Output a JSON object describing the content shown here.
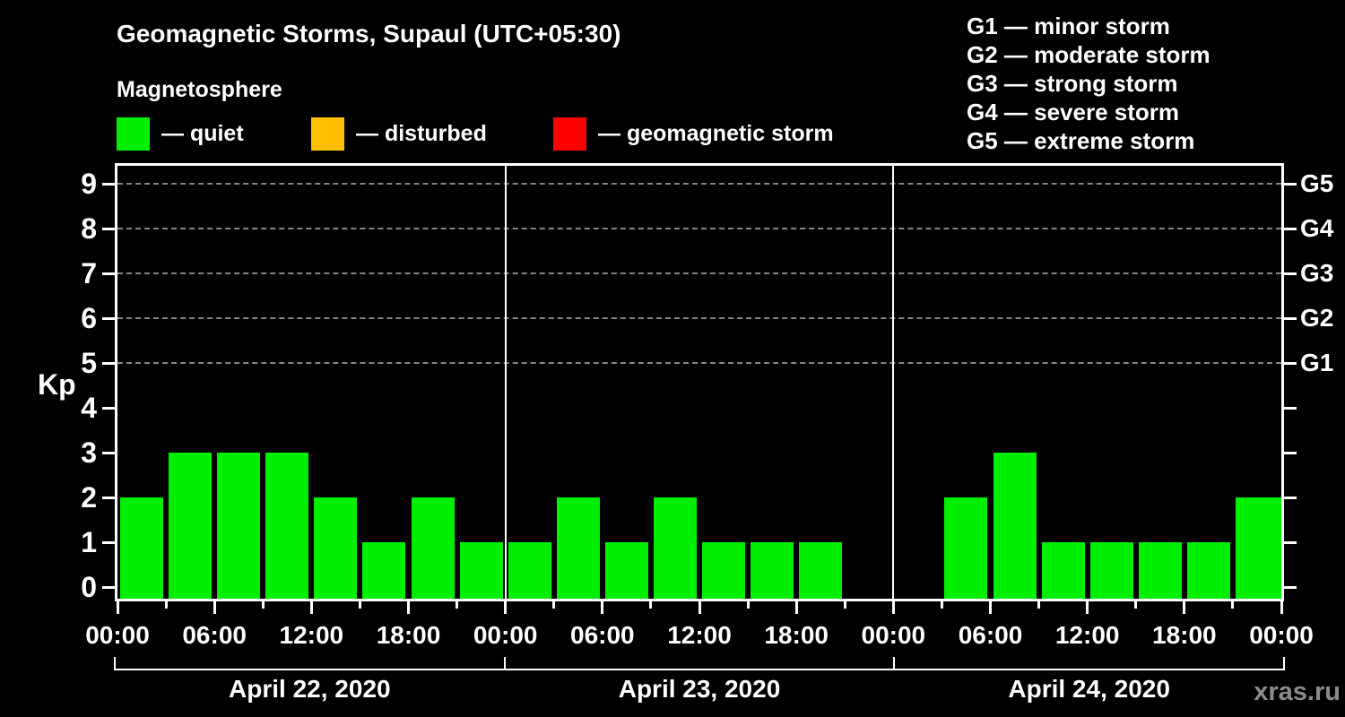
{
  "header": {
    "title": "Geomagnetic Storms, Supaul (UTC+05:30)",
    "subtitle": "Magnetosphere"
  },
  "status_legend": [
    {
      "name": "quiet",
      "label": "— quiet",
      "color": "#00ee00"
    },
    {
      "name": "disturbed",
      "label": "— disturbed",
      "color": "#ffbe00"
    },
    {
      "name": "geomagnetic-storm",
      "label": "— geomagnetic storm",
      "color": "#ff0000"
    }
  ],
  "storm_scale_legend": [
    {
      "code": "G1",
      "label": "G1 — minor storm"
    },
    {
      "code": "G2",
      "label": "G2 — moderate storm"
    },
    {
      "code": "G3",
      "label": "G3 — strong storm"
    },
    {
      "code": "G4",
      "label": "G4 — severe storm"
    },
    {
      "code": "G5",
      "label": "G5 — extreme storm"
    }
  ],
  "axes": {
    "y_label": "Kp",
    "y_ticks": [
      0,
      1,
      2,
      3,
      4,
      5,
      6,
      7,
      8,
      9
    ],
    "right_labels": [
      {
        "value": 5,
        "label": "G1"
      },
      {
        "value": 6,
        "label": "G2"
      },
      {
        "value": 7,
        "label": "G3"
      },
      {
        "value": 8,
        "label": "G4"
      },
      {
        "value": 9,
        "label": "G5"
      }
    ],
    "x_labels": [
      "00:00",
      "06:00",
      "12:00",
      "18:00",
      "00:00",
      "06:00",
      "12:00",
      "18:00",
      "00:00",
      "06:00",
      "12:00",
      "18:00",
      "00:00"
    ]
  },
  "watermark": "xras.ru",
  "chart_data": {
    "type": "bar",
    "title": "Geomagnetic Storms, Supaul (UTC+05:30)",
    "subtitle": "Magnetosphere",
    "ylabel": "Kp",
    "ylim": [
      0,
      9.5
    ],
    "yticks": [
      0,
      1,
      2,
      3,
      4,
      5,
      6,
      7,
      8,
      9
    ],
    "grid_levels": [
      5,
      6,
      7,
      8,
      9
    ],
    "grid_style": "dashed gray, horizontal, at storm levels G1-G5",
    "interval_hours": 3,
    "bar_color": "#00ee00",
    "color_rule": {
      "quiet": "#00ee00",
      "disturbed": "#ffbe00",
      "storm": "#ff0000"
    },
    "days": [
      {
        "date": "April 22, 2020",
        "values": [
          2,
          3,
          3,
          3,
          2,
          1,
          2,
          1
        ]
      },
      {
        "date": "April 23, 2020",
        "values": [
          1,
          2,
          1,
          2,
          1,
          1,
          1,
          null
        ]
      },
      {
        "date": "April 24, 2020",
        "values": [
          null,
          2,
          3,
          1,
          1,
          1,
          1,
          2
        ]
      }
    ],
    "partial_right_edge_bar": 2,
    "legend_position": "top"
  }
}
